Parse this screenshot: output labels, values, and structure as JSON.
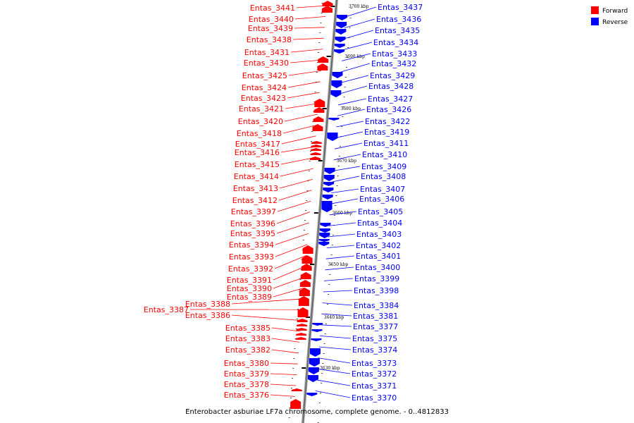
{
  "caption": "Enterobacter asburiae LF7a chromosome, complete genome. - 0..4812833",
  "legend": [
    {
      "label": "Forward",
      "color": "#ff0000"
    },
    {
      "label": "Reverse",
      "color": "#0000ff"
    }
  ],
  "colors": {
    "forward": "#ff0000",
    "reverse": "#0000ff",
    "backbone": "#999999"
  },
  "kbp_ticks": [
    "3700 kbp",
    "3690 kbp",
    "3680 kbp",
    "3670 kbp",
    "3660 kbp",
    "3650 kbp",
    "3640 kbp",
    "3630 kbp"
  ],
  "forward_genes": [
    "Entas_3441",
    "Entas_3440",
    "Entas_3439",
    "Entas_3438",
    "Entas_3431",
    "Entas_3430",
    "Entas_3425",
    "Entas_3424",
    "Entas_3423",
    "Entas_3421",
    "Entas_3420",
    "Entas_3418",
    "Entas_3417",
    "Entas_3416",
    "Entas_3415",
    "Entas_3414",
    "Entas_3413",
    "Entas_3412",
    "Entas_3397",
    "Entas_3396",
    "Entas_3395",
    "Entas_3394",
    "Entas_3393",
    "Entas_3392",
    "Entas_3391",
    "Entas_3390",
    "Entas_3389",
    "Entas_3388",
    "Entas_3387",
    "Entas_3386",
    "Entas_3385",
    "Entas_3383",
    "Entas_3382",
    "Entas_3380",
    "Entas_3379",
    "Entas_3378",
    "Entas_3376"
  ],
  "reverse_genes": [
    "Entas_3437",
    "Entas_3436",
    "Entas_3435",
    "Entas_3434",
    "Entas_3433",
    "Entas_3432",
    "Entas_3429",
    "Entas_3428",
    "Entas_3427",
    "Entas_3426",
    "Entas_3422",
    "Entas_3419",
    "Entas_3411",
    "Entas_3410",
    "Entas_3409",
    "Entas_3408",
    "Entas_3407",
    "Entas_3406",
    "Entas_3405",
    "Entas_3404",
    "Entas_3403",
    "Entas_3402",
    "Entas_3401",
    "Entas_3400",
    "Entas_3399",
    "Entas_3398",
    "Entas_3384",
    "Entas_3381",
    "Entas_3377",
    "Entas_3375",
    "Entas_3374",
    "Entas_3373",
    "Entas_3372",
    "Entas_3371",
    "Entas_3370"
  ]
}
